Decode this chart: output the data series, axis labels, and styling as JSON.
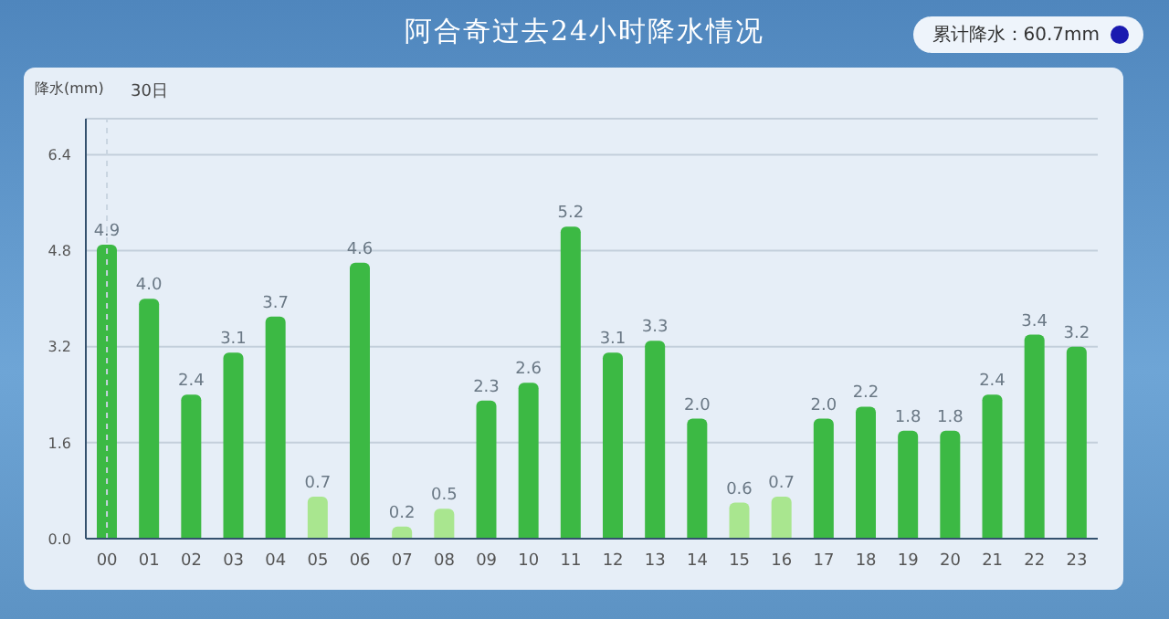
{
  "chart_data": {
    "type": "bar",
    "title": "阿合奇过去24小时降水情况",
    "ylabel": "降水(mm)",
    "annotations": [
      "累计降水：60.7mm"
    ],
    "categories": [
      "00",
      "01",
      "02",
      "03",
      "04",
      "05",
      "06",
      "07",
      "08",
      "09",
      "10",
      "11",
      "12",
      "13",
      "14",
      "15",
      "16",
      "17",
      "18",
      "19",
      "20",
      "21",
      "22",
      "23"
    ],
    "values": [
      4.9,
      4.0,
      2.4,
      3.1,
      3.7,
      0.7,
      4.6,
      0.2,
      0.5,
      2.3,
      2.6,
      5.2,
      3.1,
      3.3,
      2.0,
      0.6,
      0.7,
      2.0,
      2.2,
      1.8,
      1.8,
      2.4,
      3.4,
      3.2
    ],
    "colors": [
      "#3cb944",
      "#3cb944",
      "#3cb944",
      "#3cb944",
      "#3cb944",
      "#a9e68f",
      "#3cb944",
      "#a9e68f",
      "#a9e68f",
      "#3cb944",
      "#3cb944",
      "#3cb944",
      "#3cb944",
      "#3cb944",
      "#3cb944",
      "#a9e68f",
      "#a9e68f",
      "#3cb944",
      "#3cb944",
      "#3cb944",
      "#3cb944",
      "#3cb944",
      "#3cb944",
      "#3cb944"
    ],
    "value_labels": [
      "4.9",
      "4.0",
      "2.4",
      "3.1",
      "3.7",
      "0.7",
      "4.6",
      "0.2",
      "0.5",
      "2.3",
      "2.6",
      "5.2",
      "3.1",
      "3.3",
      "2.0",
      "0.6",
      "0.7",
      "2.0",
      "2.2",
      "1.8",
      "1.8",
      "2.4",
      "3.4",
      "3.2"
    ],
    "ylim": [
      0,
      7
    ],
    "yticks": [
      {
        "value": 0,
        "label": "0.0"
      },
      1.6,
      3.2,
      4.8,
      6.4
    ],
    "grid": "y",
    "ref_lines": [
      {
        "axis": "x",
        "value": "00",
        "label": "30日",
        "line_style": "dashed",
        "color": "#c8d4e0"
      }
    ]
  }
}
